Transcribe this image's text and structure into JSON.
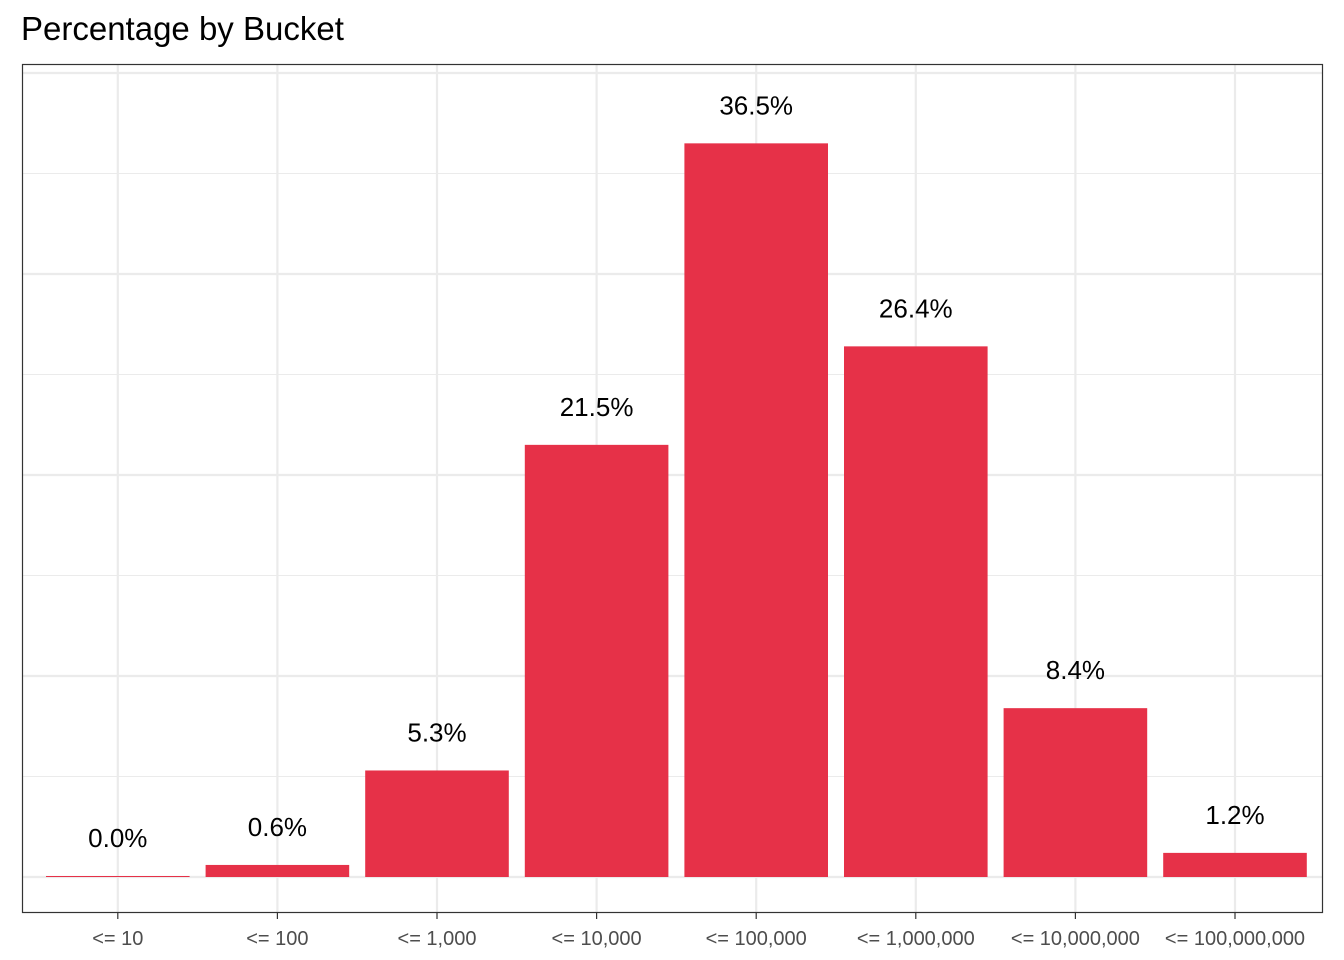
{
  "chart_data": {
    "type": "bar",
    "title": "Percentage by Bucket",
    "xlabel": "",
    "ylabel": "",
    "categories": [
      "<= 10",
      "<= 100",
      "<= 1,000",
      "<= 10,000",
      "<= 100,000",
      "<= 1,000,000",
      "<= 10,000,000",
      "<= 100,000,000"
    ],
    "values": [
      0.0,
      0.6,
      5.3,
      21.5,
      36.5,
      26.4,
      8.4,
      1.2
    ],
    "value_labels": [
      "0.0%",
      "0.6%",
      "5.3%",
      "21.5%",
      "36.5%",
      "26.4%",
      "8.4%",
      "1.2%"
    ],
    "ylim": [
      0,
      40
    ],
    "grid": true,
    "legend": "none",
    "bar_color": "#E63148",
    "panel_border_color": "#333333",
    "grid_color": "#EBEBEB"
  }
}
